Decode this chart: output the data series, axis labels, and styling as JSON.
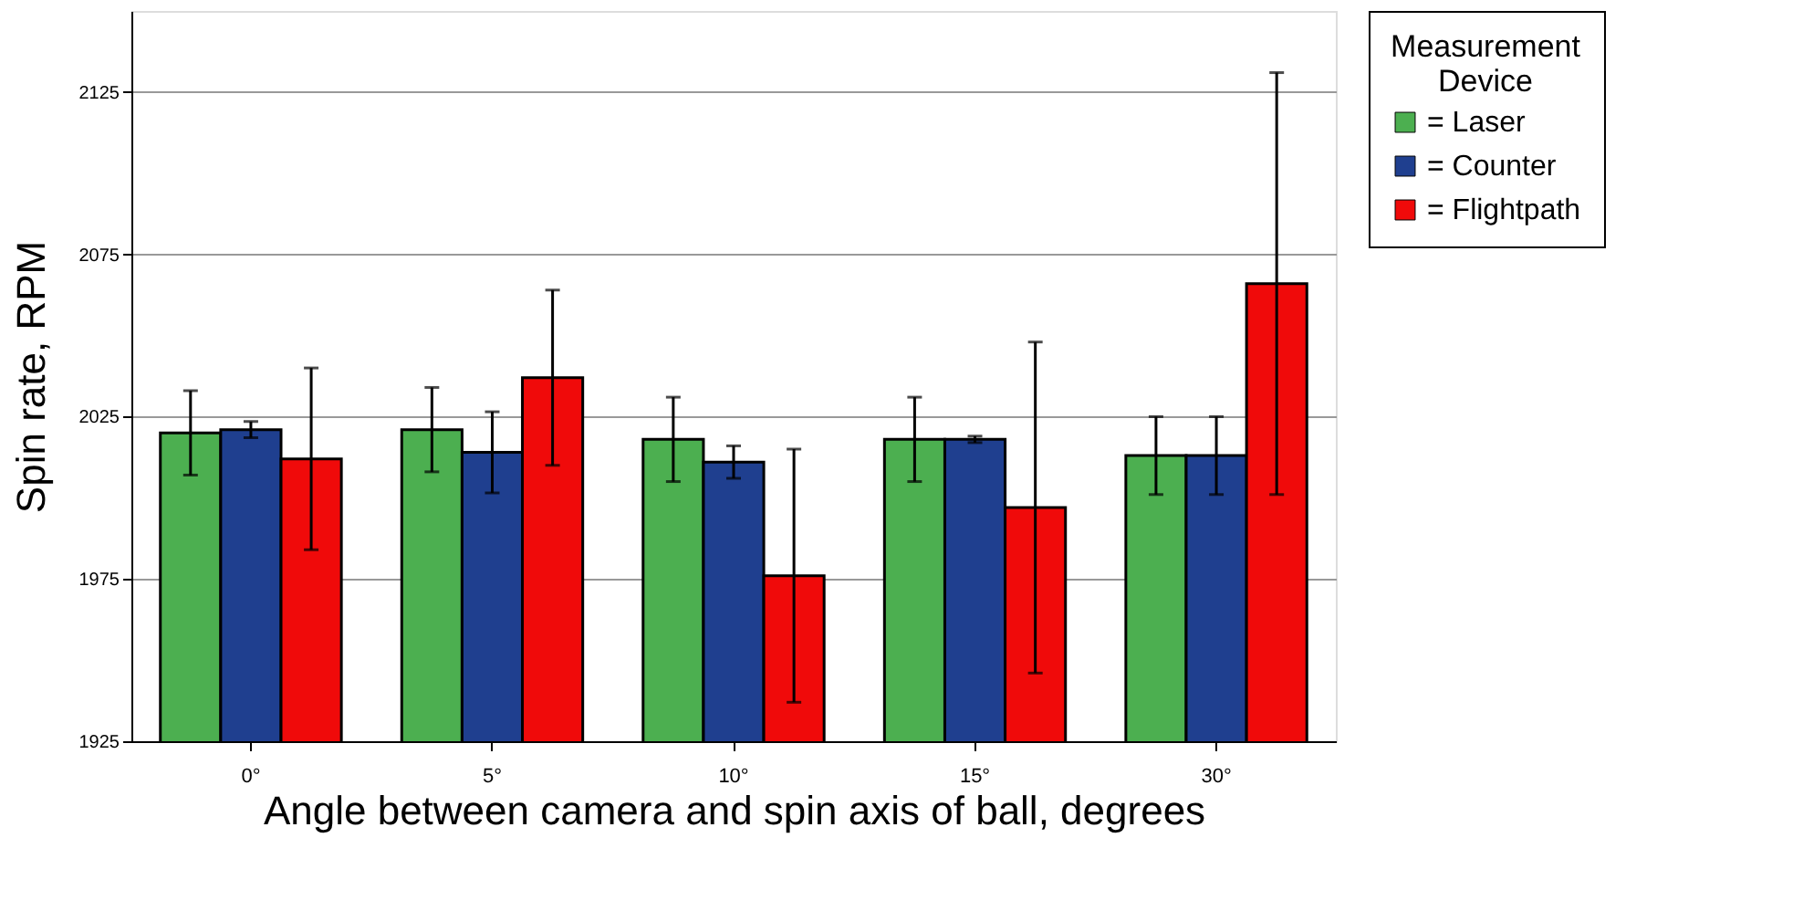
{
  "chart_data": {
    "type": "bar",
    "xlabel": "Angle between camera and spin axis of ball, degrees",
    "ylabel": "Spin rate, RPM",
    "legend_title": "Measurement Device",
    "categories": [
      "0°",
      "5°",
      "10°",
      "15°",
      "30°"
    ],
    "series": [
      {
        "name": "= Laser",
        "color": "#4caf50",
        "values": [
          2020,
          2021,
          2018,
          2018,
          2013
        ],
        "errors": [
          13,
          13,
          13,
          13,
          12
        ]
      },
      {
        "name": "= Counter",
        "color": "#1f3f8f",
        "values": [
          2021,
          2014,
          2011,
          2018,
          2013
        ],
        "errors": [
          2.5,
          12.5,
          5,
          1,
          12
        ]
      },
      {
        "name": "= Flightpath",
        "color": "#f00a0a",
        "values": [
          2012,
          2037,
          1976,
          1997,
          2066
        ],
        "errors": [
          28,
          27,
          39,
          51,
          65
        ]
      }
    ],
    "ylim": [
      1925,
      2150
    ],
    "yticks": [
      1925,
      1975,
      2025,
      2075,
      2125
    ],
    "grid": "y",
    "legend": "right"
  }
}
